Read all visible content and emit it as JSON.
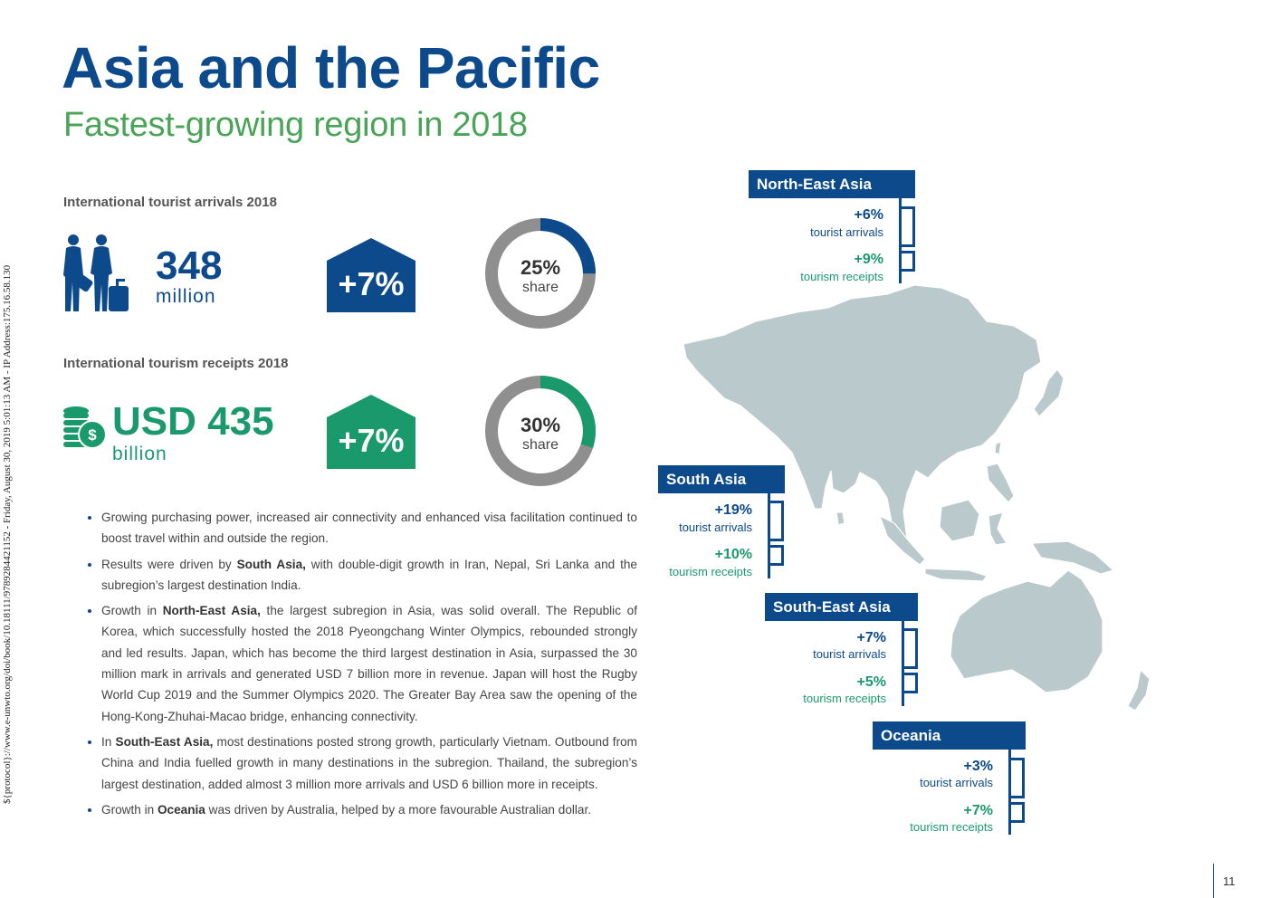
{
  "side_note": "${protocol}://www.e-unwto.org/doi/book/10.18111/9789284421152 - Friday, August 30, 2019 5:01:13 AM - IP Address:175.16.58.130",
  "title": "Asia and the Pacific",
  "subtitle": "Fastest-growing region in 2018",
  "arrivals": {
    "label": "International tourist arrivals 2018",
    "value": "348",
    "unit": "million",
    "growth": "+7%",
    "share_pct": "25%",
    "share_word": "share",
    "share_fraction": 0.25,
    "icon": "travellers-icon"
  },
  "receipts": {
    "label": "International tourism receipts 2018",
    "value": "USD 435",
    "unit": "billion",
    "growth": "+7%",
    "share_pct": "30%",
    "share_word": "share",
    "share_fraction": 0.3,
    "icon": "coins-dollar-icon"
  },
  "bullets": [
    {
      "pre": "Growing purchasing power, increased air connectivity and enhanced visa facilitation continued to boost travel within and outside the region.",
      "bold": "",
      "post": ""
    },
    {
      "pre": "Results were driven by ",
      "bold": "South Asia,",
      "post": " with double-digit growth in Iran, Nepal, Sri Lanka and the subregion’s largest destination India."
    },
    {
      "pre": "Growth in ",
      "bold": "North-East Asia,",
      "post": " the largest subregion in Asia, was solid overall. The Republic of Korea, which successfully hosted the 2018 Pyeongchang Winter Olympics, rebounded strongly and led results. Japan, which has become the third largest destination in Asia, surpassed the 30 million mark in arrivals and generated USD 7 billion more in revenue. Japan will host the Rugby World Cup 2019 and the Summer Olympics 2020. The Greater Bay Area saw the opening of the Hong-Kong-Zhuhai-Macao bridge, enhancing connectivity."
    },
    {
      "pre": "In ",
      "bold": "South-East Asia,",
      "post": " most destinations posted strong growth, particularly Vietnam. Outbound from China and India fuelled growth in many destinations in the subregion. Thailand, the subregion’s largest destination, added almost 3 million more arrivals and USD 6 billion more in receipts."
    },
    {
      "pre": "Growth in ",
      "bold": "Oceania",
      "post": " was driven by Australia, helped by a more favourable Australian dollar."
    }
  ],
  "regions": {
    "north_east": {
      "name": "North-East Asia",
      "arrivals": "+6%",
      "arrivals_label": "tourist arrivals",
      "receipts": "+9%",
      "receipts_label": "tourism receipts"
    },
    "south": {
      "name": "South Asia",
      "arrivals": "+19%",
      "arrivals_label": "tourist arrivals",
      "receipts": "+10%",
      "receipts_label": "tourism receipts"
    },
    "south_east": {
      "name": "South-East Asia",
      "arrivals": "+7%",
      "arrivals_label": "tourist arrivals",
      "receipts": "+5%",
      "receipts_label": "tourism receipts"
    },
    "oceania": {
      "name": "Oceania",
      "arrivals": "+3%",
      "arrivals_label": "tourist arrivals",
      "receipts": "+7%",
      "receipts_label": "tourism receipts"
    }
  },
  "page_number": "11",
  "colors": {
    "blue": "#0c4a8c",
    "green": "#1a9a6c",
    "subtitle_green": "#4aa457",
    "donut_grey": "#8f8f8f",
    "map_land": "#b9c9cc"
  }
}
